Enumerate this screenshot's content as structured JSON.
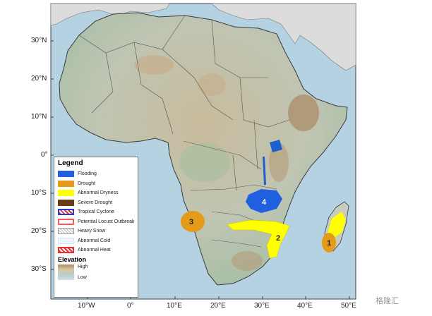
{
  "map": {
    "lat_labels": [
      "30°N",
      "20°N",
      "10°N",
      "0°",
      "10°S",
      "20°S",
      "30°S"
    ],
    "lon_labels": [
      "10°W",
      "0°",
      "10°E",
      "20°E",
      "30°E",
      "40°E",
      "50°E"
    ]
  },
  "zones": [
    {
      "id": "1",
      "type": "Drought",
      "location": "southern Madagascar"
    },
    {
      "id": "2",
      "type": "Abnormal Dryness",
      "location": "southern Mozambique / southern Africa belt"
    },
    {
      "id": "3",
      "type": "Drought",
      "location": "southwestern Angola / northern Namibia coast"
    },
    {
      "id": "4",
      "type": "Flooding",
      "location": "Zambia / Malawi region"
    }
  ],
  "legend": {
    "title": "Legend",
    "items": [
      {
        "label": "Flooding",
        "color": "#1f5fe0",
        "style": "solid"
      },
      {
        "label": "Drought",
        "color": "#e69a1a",
        "style": "solid"
      },
      {
        "label": "Abnormal Dryness",
        "color": "#ffff00",
        "style": "solid"
      },
      {
        "label": "Severe Drought",
        "color": "#6b3a10",
        "style": "solid"
      },
      {
        "label": "Tropical Cyclone",
        "color": "#e83030",
        "style": "hatch-blue"
      },
      {
        "label": "Potential Locust Outbreak",
        "color": "#ff5555",
        "style": "outline"
      },
      {
        "label": "Heavy Snow",
        "color": "#999999",
        "style": "dots"
      },
      {
        "label": "Abnormal Cold",
        "color": "#cfe6f5",
        "style": "outline-light"
      },
      {
        "label": "Abnormal Heat",
        "color": "#e83030",
        "style": "hatch-red"
      }
    ],
    "elevation": {
      "title": "Elevation",
      "high": "High",
      "low": "Low"
    }
  },
  "colors": {
    "ocean": "#b4d2e2",
    "land": "#c7cdbf",
    "outside_land": "#dcdcdc"
  },
  "watermark": "格隆汇"
}
